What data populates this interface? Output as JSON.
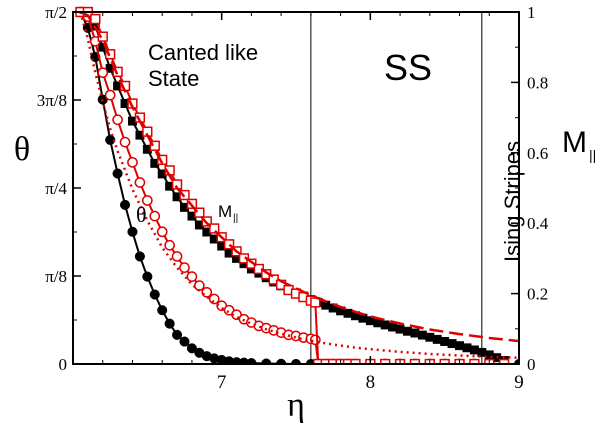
{
  "chart_data": {
    "type": "line",
    "xlabel": "η",
    "ylabel_left": "θ",
    "ylabel_right": "M",
    "ylabel_right_sub": "||",
    "xlim": [
      6.0,
      9.0
    ],
    "ylim_left": [
      0,
      1.5708
    ],
    "ylim_right": [
      0,
      1.0
    ],
    "x_ticks": [
      {
        "value": 7,
        "label": "7"
      },
      {
        "value": 8,
        "label": "8"
      },
      {
        "value": 9,
        "label": "9"
      }
    ],
    "y_ticks_left": [
      {
        "value": 0,
        "label": "0"
      },
      {
        "value": 0.3927,
        "label": "π/8"
      },
      {
        "value": 0.7854,
        "label": "π/4"
      },
      {
        "value": 1.1781,
        "label": "3π/8"
      },
      {
        "value": 1.5708,
        "label": "π/2"
      }
    ],
    "y_ticks_right": [
      {
        "value": 0,
        "label": "0"
      },
      {
        "value": 0.2,
        "label": "0.2"
      },
      {
        "value": 0.4,
        "label": "0.4"
      },
      {
        "value": 0.6,
        "label": "0.6"
      },
      {
        "value": 0.8,
        "label": "0.8"
      },
      {
        "value": 1.0,
        "label": "1"
      }
    ],
    "phase_boundaries": [
      7.6,
      8.75
    ],
    "annotations": {
      "region1_line1": "Canted like",
      "region1_line2": "State",
      "region2": "SS",
      "region3": "Ising Stripes",
      "theta_label": "θ",
      "m_label": "M",
      "m_label_sub": "||"
    },
    "series": [
      {
        "color": "#000000",
        "marker": "circle-filled",
        "line": "solid",
        "axis": "left",
        "x": [
          6.05,
          6.1,
          6.15,
          6.2,
          6.25,
          6.3,
          6.35,
          6.4,
          6.45,
          6.5,
          6.55,
          6.6,
          6.65,
          6.7,
          6.75,
          6.8,
          6.85,
          6.9,
          6.95,
          7.0,
          7.05,
          7.1,
          7.15,
          7.2,
          7.3,
          7.4,
          7.5,
          7.6,
          7.7,
          7.8,
          7.9,
          8.0,
          8.1,
          8.2,
          8.3,
          8.4,
          8.5,
          8.6,
          8.7,
          8.8,
          8.9,
          9.0
        ],
        "y": [
          1.5708,
          1.5,
          1.37,
          1.18,
          1.0,
          0.85,
          0.71,
          0.59,
          0.48,
          0.39,
          0.31,
          0.24,
          0.18,
          0.13,
          0.1,
          0.07,
          0.05,
          0.035,
          0.025,
          0.018,
          0.012,
          0.008,
          0.006,
          0.004,
          0.002,
          0.001,
          0.0,
          0.0,
          0.0,
          0.0,
          0.0,
          0.0,
          0.0,
          0.0,
          0.0,
          0.0,
          0.0,
          0.0,
          0.0,
          0.0,
          0.0,
          0.0
        ]
      },
      {
        "color": "#000000",
        "marker": "square-filled",
        "line": "solid",
        "axis": "right",
        "x": [
          6.05,
          6.1,
          6.15,
          6.2,
          6.25,
          6.3,
          6.35,
          6.4,
          6.45,
          6.5,
          6.55,
          6.6,
          6.65,
          6.7,
          6.75,
          6.8,
          6.85,
          6.9,
          6.95,
          7.0,
          7.05,
          7.1,
          7.15,
          7.2,
          7.25,
          7.3,
          7.35,
          7.4,
          7.45,
          7.5,
          7.55,
          7.6,
          7.65,
          7.7,
          7.75,
          7.8,
          7.85,
          7.9,
          7.95,
          8.0,
          8.05,
          8.1,
          8.15,
          8.2,
          8.25,
          8.3,
          8.35,
          8.4,
          8.45,
          8.5,
          8.55,
          8.6,
          8.65,
          8.7,
          8.75,
          8.8,
          8.85,
          8.9
        ],
        "y": [
          1.0,
          1.0,
          0.96,
          0.9,
          0.84,
          0.79,
          0.74,
          0.69,
          0.65,
          0.61,
          0.57,
          0.54,
          0.505,
          0.475,
          0.445,
          0.42,
          0.395,
          0.375,
          0.355,
          0.335,
          0.315,
          0.3,
          0.285,
          0.27,
          0.258,
          0.245,
          0.233,
          0.222,
          0.212,
          0.202,
          0.193,
          0.183,
          0.175,
          0.167,
          0.159,
          0.151,
          0.144,
          0.137,
          0.13,
          0.123,
          0.117,
          0.111,
          0.105,
          0.099,
          0.093,
          0.088,
          0.082,
          0.076,
          0.07,
          0.064,
          0.058,
          0.052,
          0.046,
          0.04,
          0.033,
          0.026,
          0.018,
          0.01
        ]
      },
      {
        "color": "#e00000",
        "marker": "circle-open",
        "line": "solid",
        "axis": "left",
        "x": [
          6.05,
          6.1,
          6.15,
          6.2,
          6.25,
          6.3,
          6.35,
          6.4,
          6.45,
          6.5,
          6.55,
          6.6,
          6.65,
          6.7,
          6.75,
          6.8,
          6.85,
          6.9,
          6.95,
          7.0,
          7.05,
          7.1,
          7.15,
          7.2,
          7.25,
          7.3,
          7.35,
          7.4,
          7.45,
          7.5,
          7.55,
          7.6,
          7.63,
          7.65,
          7.7,
          7.75,
          7.8,
          7.85,
          7.9,
          8.0,
          8.1,
          8.2,
          8.3,
          8.4,
          8.5,
          8.6,
          8.7,
          8.8,
          8.9
        ],
        "y": [
          1.5708,
          1.55,
          1.44,
          1.3,
          1.2,
          1.09,
          0.99,
          0.9,
          0.81,
          0.73,
          0.66,
          0.59,
          0.53,
          0.48,
          0.43,
          0.39,
          0.35,
          0.32,
          0.29,
          0.26,
          0.24,
          0.22,
          0.2,
          0.185,
          0.17,
          0.16,
          0.15,
          0.14,
          0.13,
          0.125,
          0.118,
          0.112,
          0.108,
          0.0,
          0.0,
          0.0,
          0.0,
          0.0,
          0.0,
          0.0,
          0.0,
          0.0,
          0.0,
          0.0,
          0.0,
          0.0,
          0.0,
          0.0,
          0.0
        ]
      },
      {
        "color": "#e00000",
        "marker": "square-open",
        "line": "solid",
        "axis": "right",
        "x": [
          6.05,
          6.1,
          6.15,
          6.2,
          6.25,
          6.3,
          6.35,
          6.4,
          6.45,
          6.5,
          6.55,
          6.6,
          6.65,
          6.7,
          6.75,
          6.8,
          6.85,
          6.9,
          6.95,
          7.0,
          7.05,
          7.1,
          7.15,
          7.2,
          7.25,
          7.3,
          7.35,
          7.4,
          7.45,
          7.5,
          7.55,
          7.6,
          7.63,
          7.65,
          7.7,
          7.75,
          7.8,
          7.85,
          7.9,
          8.0,
          8.1,
          8.2,
          8.3,
          8.4,
          8.5,
          8.6,
          8.7,
          8.8,
          8.9
        ],
        "y": [
          1.0,
          1.0,
          0.98,
          0.93,
          0.88,
          0.83,
          0.79,
          0.74,
          0.7,
          0.66,
          0.62,
          0.58,
          0.55,
          0.51,
          0.48,
          0.455,
          0.43,
          0.405,
          0.385,
          0.36,
          0.34,
          0.32,
          0.3,
          0.285,
          0.27,
          0.255,
          0.24,
          0.225,
          0.21,
          0.2,
          0.19,
          0.18,
          0.175,
          0.0,
          0.0,
          0.0,
          0.0,
          0.0,
          0.0,
          0.0,
          0.0,
          0.0,
          0.0,
          0.0,
          0.0,
          0.0,
          0.0,
          0.0,
          0.0
        ]
      },
      {
        "color": "#e00000",
        "marker": "none",
        "line": "dashed",
        "axis": "right",
        "x": [
          6.05,
          6.1,
          6.2,
          6.3,
          6.4,
          6.5,
          6.6,
          6.7,
          6.8,
          6.9,
          7.0,
          7.1,
          7.2,
          7.3,
          7.4,
          7.5,
          7.6,
          7.7,
          7.8,
          7.9,
          8.0,
          8.2,
          8.4,
          8.6,
          8.8,
          9.0
        ],
        "y": [
          1.0,
          0.99,
          0.92,
          0.82,
          0.73,
          0.65,
          0.57,
          0.5,
          0.45,
          0.4,
          0.36,
          0.32,
          0.29,
          0.26,
          0.235,
          0.215,
          0.195,
          0.178,
          0.162,
          0.148,
          0.135,
          0.115,
          0.098,
          0.085,
          0.074,
          0.065
        ]
      },
      {
        "color": "#e00000",
        "marker": "none",
        "line": "dotted",
        "axis": "left",
        "x": [
          6.05,
          6.1,
          6.15,
          6.2,
          6.25,
          6.3,
          6.4,
          6.5,
          6.6,
          6.7,
          6.8,
          6.9,
          7.0,
          7.1,
          7.2,
          7.3,
          7.4,
          7.5,
          7.6,
          7.7,
          7.8,
          7.9,
          8.0,
          8.2,
          8.4,
          8.6,
          8.8,
          9.0
        ],
        "y": [
          1.5708,
          1.45,
          1.3,
          1.17,
          1.05,
          0.95,
          0.78,
          0.64,
          0.52,
          0.43,
          0.355,
          0.3,
          0.25,
          0.21,
          0.18,
          0.155,
          0.135,
          0.118,
          0.104,
          0.092,
          0.082,
          0.073,
          0.066,
          0.054,
          0.045,
          0.038,
          0.032,
          0.028
        ]
      }
    ]
  }
}
